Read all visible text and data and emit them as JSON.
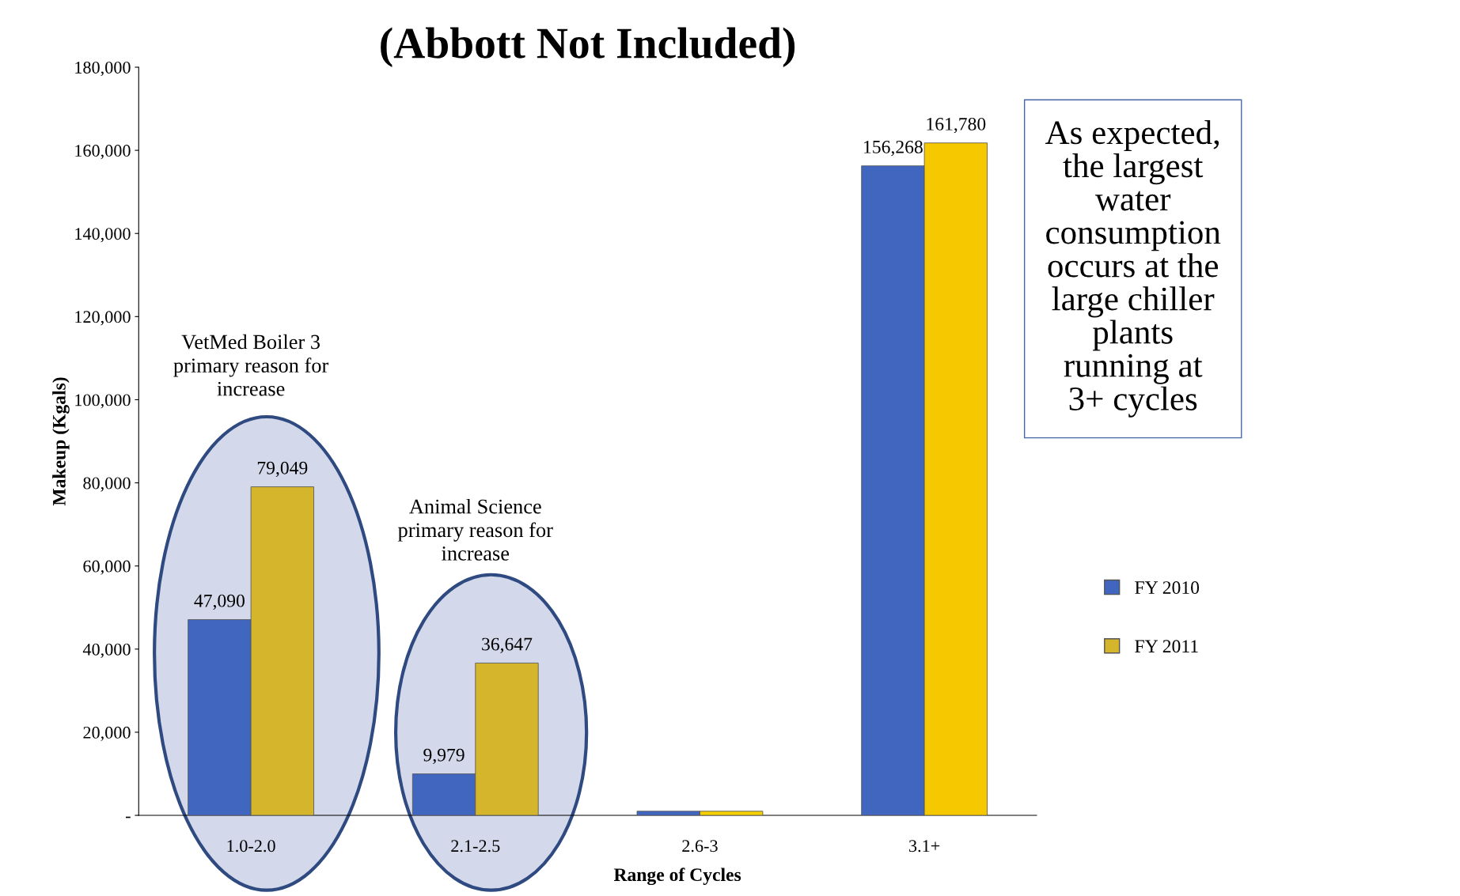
{
  "chart_data": {
    "type": "bar",
    "title": "(Abbott Not Included)",
    "xlabel": "Range of Cycles",
    "ylabel": "Makeup (Kgals)",
    "categories": [
      "1.0-2.0",
      "2.1-2.5",
      "2.6-3",
      "3.1+"
    ],
    "series": [
      {
        "name": "FY 2010",
        "color": "#4166c0",
        "values": [
          47090,
          9979,
          1000,
          156268
        ],
        "value_labels": [
          "47,090",
          "9,979",
          null,
          "156,268"
        ]
      },
      {
        "name": "FY 2011",
        "color": "#d4b52c",
        "colors": [
          "#d4b52c",
          "#d4b52c",
          "#f5d000",
          "#f5c800"
        ],
        "values": [
          79049,
          36647,
          1000,
          161780
        ],
        "value_labels": [
          "79,049",
          "36,647",
          null,
          "161,780"
        ]
      }
    ],
    "ylim": [
      0,
      180000
    ],
    "yticks": [
      {
        "value": 0,
        "label": "-"
      },
      {
        "value": 20000,
        "label": "20,000"
      },
      {
        "value": 40000,
        "label": "40,000"
      },
      {
        "value": 60000,
        "label": "60,000"
      },
      {
        "value": 80000,
        "label": "80,000"
      },
      {
        "value": 100000,
        "label": "100,000"
      },
      {
        "value": 120000,
        "label": "120,000"
      },
      {
        "value": 140000,
        "label": "140,000"
      },
      {
        "value": 160000,
        "label": "160,000"
      },
      {
        "value": 180000,
        "label": "180,000"
      }
    ],
    "grid": false,
    "legend": "right",
    "annotations": [
      "VetMed Boiler 3\nprimary reason for\nincrease",
      "Animal Science\nprimary reason for\nincrease",
      "As expected,\nthe largest\nwater\nconsumption\noccurs at the\nlarge chiller\nplants\nrunning at\n3+ cycles"
    ]
  }
}
